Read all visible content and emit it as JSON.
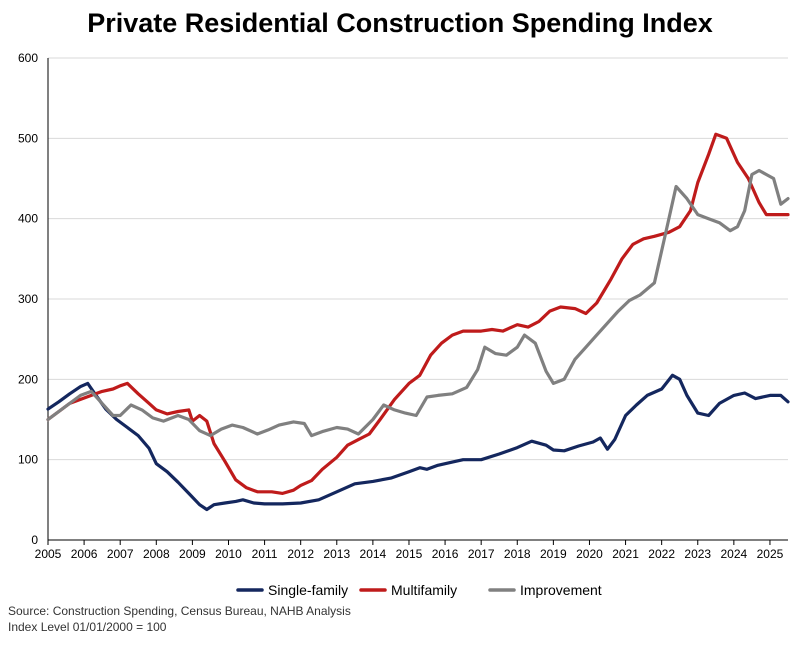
{
  "chart_data": {
    "type": "line",
    "title": "Private Residential Construction Spending Index",
    "xlabel": "",
    "ylabel": "",
    "xlim": [
      2005,
      2025.5
    ],
    "ylim": [
      0,
      600
    ],
    "y_ticks": [
      0,
      100,
      200,
      300,
      400,
      500,
      600
    ],
    "x_ticks": [
      2005,
      2006,
      2007,
      2008,
      2009,
      2010,
      2011,
      2012,
      2013,
      2014,
      2015,
      2016,
      2017,
      2018,
      2019,
      2020,
      2021,
      2022,
      2023,
      2024,
      2025
    ],
    "grid": true,
    "legend": "bottom",
    "series": [
      {
        "name": "Single-family",
        "color": "#14275e",
        "points": [
          [
            2005.0,
            163
          ],
          [
            2005.3,
            172
          ],
          [
            2005.6,
            182
          ],
          [
            2005.9,
            191
          ],
          [
            2006.1,
            195
          ],
          [
            2006.3,
            182
          ],
          [
            2006.6,
            163
          ],
          [
            2006.9,
            150
          ],
          [
            2007.2,
            140
          ],
          [
            2007.5,
            130
          ],
          [
            2007.8,
            114
          ],
          [
            2008.0,
            95
          ],
          [
            2008.3,
            85
          ],
          [
            2008.6,
            72
          ],
          [
            2008.9,
            58
          ],
          [
            2009.2,
            44
          ],
          [
            2009.4,
            38
          ],
          [
            2009.6,
            44
          ],
          [
            2009.9,
            46
          ],
          [
            2010.2,
            48
          ],
          [
            2010.4,
            50
          ],
          [
            2010.7,
            46
          ],
          [
            2011.0,
            45
          ],
          [
            2011.5,
            45
          ],
          [
            2012.0,
            46
          ],
          [
            2012.5,
            50
          ],
          [
            2013.0,
            60
          ],
          [
            2013.5,
            70
          ],
          [
            2014.0,
            73
          ],
          [
            2014.5,
            77
          ],
          [
            2015.0,
            85
          ],
          [
            2015.3,
            90
          ],
          [
            2015.5,
            88
          ],
          [
            2015.8,
            93
          ],
          [
            2016.2,
            97
          ],
          [
            2016.5,
            100
          ],
          [
            2017.0,
            100
          ],
          [
            2017.5,
            107
          ],
          [
            2018.0,
            115
          ],
          [
            2018.4,
            123
          ],
          [
            2018.8,
            118
          ],
          [
            2019.0,
            112
          ],
          [
            2019.3,
            111
          ],
          [
            2019.7,
            117
          ],
          [
            2020.1,
            122
          ],
          [
            2020.3,
            127
          ],
          [
            2020.5,
            113
          ],
          [
            2020.7,
            125
          ],
          [
            2021.0,
            155
          ],
          [
            2021.3,
            168
          ],
          [
            2021.6,
            180
          ],
          [
            2022.0,
            188
          ],
          [
            2022.3,
            205
          ],
          [
            2022.5,
            200
          ],
          [
            2022.7,
            180
          ],
          [
            2023.0,
            158
          ],
          [
            2023.3,
            155
          ],
          [
            2023.6,
            170
          ],
          [
            2024.0,
            180
          ],
          [
            2024.3,
            183
          ],
          [
            2024.6,
            176
          ],
          [
            2025.0,
            180
          ],
          [
            2025.3,
            180
          ],
          [
            2025.5,
            172
          ]
        ]
      },
      {
        "name": "Multifamily",
        "color": "#bf1b1b",
        "points": [
          [
            2005.0,
            150
          ],
          [
            2005.3,
            160
          ],
          [
            2005.6,
            170
          ],
          [
            2005.9,
            175
          ],
          [
            2006.2,
            180
          ],
          [
            2006.5,
            185
          ],
          [
            2006.8,
            188
          ],
          [
            2007.0,
            192
          ],
          [
            2007.2,
            195
          ],
          [
            2007.5,
            182
          ],
          [
            2007.8,
            170
          ],
          [
            2008.0,
            162
          ],
          [
            2008.3,
            157
          ],
          [
            2008.6,
            160
          ],
          [
            2008.9,
            162
          ],
          [
            2009.0,
            148
          ],
          [
            2009.2,
            155
          ],
          [
            2009.4,
            148
          ],
          [
            2009.6,
            120
          ],
          [
            2009.9,
            98
          ],
          [
            2010.2,
            75
          ],
          [
            2010.5,
            65
          ],
          [
            2010.8,
            60
          ],
          [
            2011.2,
            60
          ],
          [
            2011.5,
            58
          ],
          [
            2011.8,
            62
          ],
          [
            2012.0,
            68
          ],
          [
            2012.3,
            74
          ],
          [
            2012.6,
            88
          ],
          [
            2013.0,
            103
          ],
          [
            2013.3,
            118
          ],
          [
            2013.6,
            125
          ],
          [
            2013.9,
            132
          ],
          [
            2014.2,
            150
          ],
          [
            2014.6,
            175
          ],
          [
            2015.0,
            195
          ],
          [
            2015.3,
            205
          ],
          [
            2015.6,
            230
          ],
          [
            2015.9,
            245
          ],
          [
            2016.2,
            255
          ],
          [
            2016.5,
            260
          ],
          [
            2017.0,
            260
          ],
          [
            2017.3,
            262
          ],
          [
            2017.6,
            260
          ],
          [
            2018.0,
            268
          ],
          [
            2018.3,
            265
          ],
          [
            2018.6,
            272
          ],
          [
            2018.9,
            285
          ],
          [
            2019.2,
            290
          ],
          [
            2019.6,
            288
          ],
          [
            2019.9,
            282
          ],
          [
            2020.2,
            295
          ],
          [
            2020.4,
            310
          ],
          [
            2020.6,
            325
          ],
          [
            2020.9,
            350
          ],
          [
            2021.2,
            368
          ],
          [
            2021.5,
            375
          ],
          [
            2021.8,
            378
          ],
          [
            2022.2,
            383
          ],
          [
            2022.5,
            390
          ],
          [
            2022.8,
            410
          ],
          [
            2023.0,
            445
          ],
          [
            2023.3,
            480
          ],
          [
            2023.5,
            505
          ],
          [
            2023.8,
            500
          ],
          [
            2024.1,
            470
          ],
          [
            2024.4,
            450
          ],
          [
            2024.7,
            420
          ],
          [
            2024.9,
            405
          ],
          [
            2025.2,
            405
          ],
          [
            2025.5,
            405
          ]
        ]
      },
      {
        "name": "Improvement",
        "color": "#808080",
        "points": [
          [
            2005.0,
            150
          ],
          [
            2005.3,
            160
          ],
          [
            2005.6,
            170
          ],
          [
            2005.9,
            180
          ],
          [
            2006.2,
            185
          ],
          [
            2006.5,
            170
          ],
          [
            2006.8,
            155
          ],
          [
            2007.0,
            155
          ],
          [
            2007.3,
            168
          ],
          [
            2007.6,
            162
          ],
          [
            2007.9,
            152
          ],
          [
            2008.2,
            148
          ],
          [
            2008.6,
            155
          ],
          [
            2008.9,
            150
          ],
          [
            2009.2,
            136
          ],
          [
            2009.5,
            130
          ],
          [
            2009.8,
            138
          ],
          [
            2010.1,
            143
          ],
          [
            2010.4,
            140
          ],
          [
            2010.8,
            132
          ],
          [
            2011.1,
            137
          ],
          [
            2011.4,
            143
          ],
          [
            2011.8,
            147
          ],
          [
            2012.1,
            145
          ],
          [
            2012.3,
            130
          ],
          [
            2012.6,
            135
          ],
          [
            2013.0,
            140
          ],
          [
            2013.3,
            138
          ],
          [
            2013.6,
            132
          ],
          [
            2014.0,
            150
          ],
          [
            2014.3,
            168
          ],
          [
            2014.6,
            162
          ],
          [
            2014.9,
            158
          ],
          [
            2015.2,
            155
          ],
          [
            2015.5,
            178
          ],
          [
            2015.8,
            180
          ],
          [
            2016.2,
            182
          ],
          [
            2016.6,
            190
          ],
          [
            2016.9,
            212
          ],
          [
            2017.1,
            240
          ],
          [
            2017.4,
            232
          ],
          [
            2017.7,
            230
          ],
          [
            2018.0,
            240
          ],
          [
            2018.2,
            255
          ],
          [
            2018.5,
            245
          ],
          [
            2018.8,
            210
          ],
          [
            2019.0,
            195
          ],
          [
            2019.3,
            200
          ],
          [
            2019.6,
            225
          ],
          [
            2019.9,
            240
          ],
          [
            2020.2,
            255
          ],
          [
            2020.5,
            270
          ],
          [
            2020.8,
            285
          ],
          [
            2021.1,
            298
          ],
          [
            2021.4,
            305
          ],
          [
            2021.8,
            320
          ],
          [
            2022.1,
            380
          ],
          [
            2022.4,
            440
          ],
          [
            2022.7,
            425
          ],
          [
            2023.0,
            405
          ],
          [
            2023.3,
            400
          ],
          [
            2023.6,
            395
          ],
          [
            2023.9,
            385
          ],
          [
            2024.1,
            390
          ],
          [
            2024.3,
            410
          ],
          [
            2024.5,
            455
          ],
          [
            2024.7,
            460
          ],
          [
            2024.9,
            455
          ],
          [
            2025.1,
            450
          ],
          [
            2025.3,
            418
          ],
          [
            2025.5,
            425
          ]
        ]
      }
    ]
  },
  "notes": {
    "source": "Source: Construction Spending, Census Bureau, NAHB Analysis",
    "index": "Index Level 01/01/2000 = 100"
  }
}
